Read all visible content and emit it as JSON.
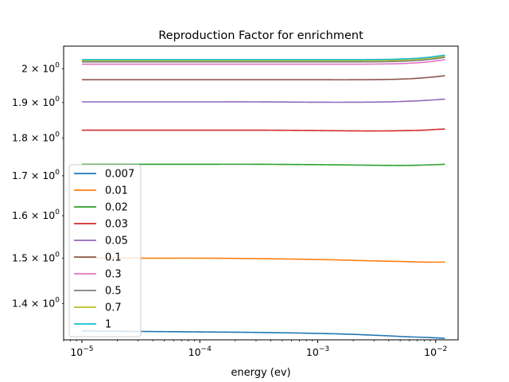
{
  "chart_data": {
    "type": "line",
    "title": "Reproduction Factor for enrichment",
    "xlabel": "energy (ev)",
    "ylabel": "",
    "x_scale": "log",
    "y_scale": "log",
    "xlim": [
      7e-06,
      0.0155
    ],
    "ylim": [
      1.325,
      2.07
    ],
    "x_ticks": [
      {
        "value": 1e-05,
        "base": "10",
        "exp": "−5"
      },
      {
        "value": 0.0001,
        "base": "10",
        "exp": "−4"
      },
      {
        "value": 0.001,
        "base": "10",
        "exp": "−3"
      },
      {
        "value": 0.01,
        "base": "10",
        "exp": "−2"
      }
    ],
    "y_ticks": [
      {
        "value": 1.4,
        "mant": "1.4",
        "base": "× 10",
        "exp": "0"
      },
      {
        "value": 1.5,
        "mant": "1.5",
        "base": "× 10",
        "exp": "0"
      },
      {
        "value": 1.6,
        "mant": "1.6",
        "base": "× 10",
        "exp": "0"
      },
      {
        "value": 1.7,
        "mant": "1.7",
        "base": "× 10",
        "exp": "0"
      },
      {
        "value": 1.8,
        "mant": "1.8",
        "base": "× 10",
        "exp": "0"
      },
      {
        "value": 1.9,
        "mant": "1.9",
        "base": "× 10",
        "exp": "0"
      },
      {
        "value": 2.0,
        "mant": "2",
        "base": "× 10",
        "exp": "0"
      }
    ],
    "grid": false,
    "legend": "lower-left",
    "x": [
      1e-05,
      3e-05,
      0.0001,
      0.0003,
      0.001,
      0.002,
      0.004,
      0.006,
      0.008,
      0.01,
      0.012
    ],
    "series": [
      {
        "name": "0.007",
        "color": "#1f77b4",
        "values": [
          1.343,
          1.342,
          1.341,
          1.34,
          1.338,
          1.336,
          1.333,
          1.331,
          1.33,
          1.329,
          1.328
        ]
      },
      {
        "name": "0.01",
        "color": "#ff7f0e",
        "values": [
          1.501,
          1.5,
          1.5,
          1.499,
          1.497,
          1.495,
          1.493,
          1.492,
          1.491,
          1.491,
          1.491
        ]
      },
      {
        "name": "0.02",
        "color": "#2ca02c",
        "values": [
          1.73,
          1.73,
          1.73,
          1.73,
          1.729,
          1.728,
          1.727,
          1.727,
          1.728,
          1.729,
          1.73
        ]
      },
      {
        "name": "0.03",
        "color": "#d62728",
        "values": [
          1.822,
          1.822,
          1.822,
          1.822,
          1.821,
          1.82,
          1.82,
          1.821,
          1.822,
          1.824,
          1.825
        ]
      },
      {
        "name": "0.05",
        "color": "#9467bd",
        "values": [
          1.902,
          1.902,
          1.902,
          1.902,
          1.901,
          1.901,
          1.902,
          1.904,
          1.906,
          1.908,
          1.91
        ]
      },
      {
        "name": "0.1",
        "color": "#8c564b",
        "values": [
          1.967,
          1.967,
          1.967,
          1.967,
          1.967,
          1.967,
          1.968,
          1.97,
          1.973,
          1.976,
          1.979
        ]
      },
      {
        "name": "0.3",
        "color": "#e377c2",
        "values": [
          2.014,
          2.014,
          2.014,
          2.014,
          2.014,
          2.014,
          2.015,
          2.017,
          2.02,
          2.024,
          2.028
        ]
      },
      {
        "name": "0.5",
        "color": "#7f7f7f",
        "values": [
          2.021,
          2.021,
          2.021,
          2.021,
          2.021,
          2.021,
          2.022,
          2.024,
          2.027,
          2.031,
          2.035
        ]
      },
      {
        "name": "0.7",
        "color": "#bcbd22",
        "values": [
          2.025,
          2.025,
          2.025,
          2.025,
          2.025,
          2.025,
          2.026,
          2.028,
          2.031,
          2.035,
          2.039
        ]
      },
      {
        "name": "1",
        "color": "#17becf",
        "values": [
          2.028,
          2.028,
          2.028,
          2.028,
          2.028,
          2.028,
          2.029,
          2.031,
          2.034,
          2.038,
          2.042
        ]
      }
    ]
  }
}
